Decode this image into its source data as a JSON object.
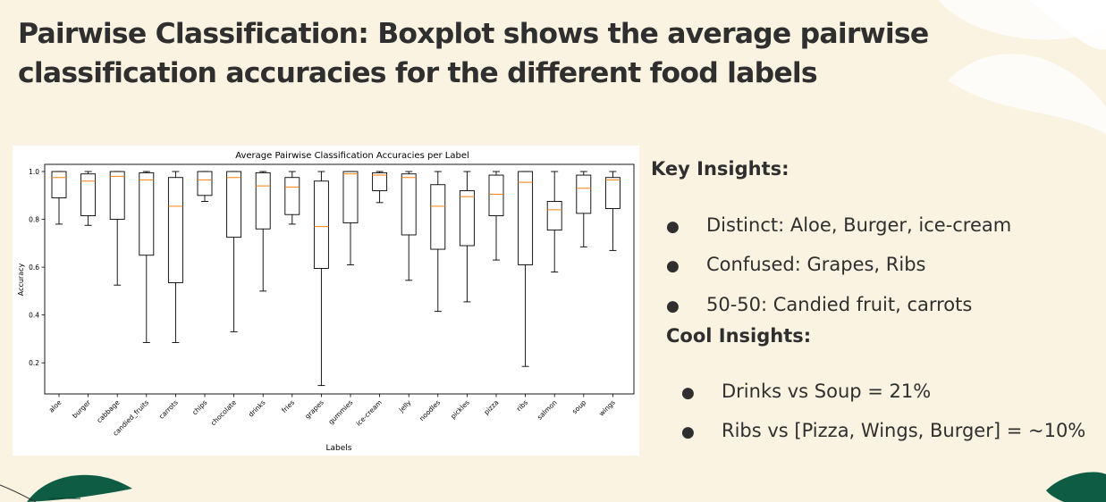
{
  "slide": {
    "title": "Pairwise Classification: Boxplot shows the average pairwise classification accuracies for the different food labels"
  },
  "insights": {
    "key_heading": "Key Insights:",
    "key_items": [
      "Distinct: Aloe, Burger, ice-cream",
      "Confused: Grapes, Ribs",
      "50-50: Candied fruit, carrots"
    ],
    "cool_heading": "Cool Insights:",
    "cool_items": [
      "Drinks vs Soup = 21%",
      "Ribs vs [Pizza, Wings, Burger] = ~10%"
    ]
  },
  "colors": {
    "background": "#faf3e2",
    "leaf_dark": "#0f5c44",
    "leaf_light": "#ffffff",
    "median": "#ff7f0e",
    "text": "#2f2f2f"
  },
  "chart_data": {
    "type": "boxplot",
    "title": "Average Pairwise Classification Accuracies per Label",
    "xlabel": "Labels",
    "ylabel": "Accuracy",
    "ylim": [
      0.07,
      1.03
    ],
    "yticks": [
      "0.2",
      "0.4",
      "0.6",
      "0.8",
      "1.0"
    ],
    "ytick_values": [
      0.2,
      0.4,
      0.6,
      0.8,
      1.0
    ],
    "grid": false,
    "categories": [
      "aloe",
      "burger",
      "cabbage",
      "candied_fruits",
      "carrots",
      "chips",
      "chocolate",
      "drinks",
      "fries",
      "grapes",
      "gummies",
      "ice-cream",
      "jelly",
      "noodles",
      "pickles",
      "pizza",
      "ribs",
      "salmon",
      "soup",
      "wings"
    ],
    "boxes": [
      {
        "label": "aloe",
        "whisker_low": 0.78,
        "q1": 0.89,
        "median": 0.975,
        "q3": 1.0,
        "whisker_high": 1.0
      },
      {
        "label": "burger",
        "whisker_low": 0.775,
        "q1": 0.815,
        "median": 0.96,
        "q3": 0.99,
        "whisker_high": 1.0
      },
      {
        "label": "cabbage",
        "whisker_low": 0.525,
        "q1": 0.8,
        "median": 0.98,
        "q3": 1.0,
        "whisker_high": 1.0
      },
      {
        "label": "candied_fruits",
        "whisker_low": 0.285,
        "q1": 0.65,
        "median": 0.965,
        "q3": 0.995,
        "whisker_high": 1.0
      },
      {
        "label": "carrots",
        "whisker_low": 0.285,
        "q1": 0.535,
        "median": 0.855,
        "q3": 0.975,
        "whisker_high": 1.0
      },
      {
        "label": "chips",
        "whisker_low": 0.875,
        "q1": 0.9,
        "median": 0.965,
        "q3": 1.0,
        "whisker_high": 1.0
      },
      {
        "label": "chocolate",
        "whisker_low": 0.33,
        "q1": 0.725,
        "median": 0.975,
        "q3": 1.0,
        "whisker_high": 1.0
      },
      {
        "label": "drinks",
        "whisker_low": 0.5,
        "q1": 0.76,
        "median": 0.94,
        "q3": 0.995,
        "whisker_high": 1.0
      },
      {
        "label": "fries",
        "whisker_low": 0.78,
        "q1": 0.82,
        "median": 0.935,
        "q3": 0.975,
        "whisker_high": 1.0
      },
      {
        "label": "grapes",
        "whisker_low": 0.105,
        "q1": 0.595,
        "median": 0.77,
        "q3": 0.96,
        "whisker_high": 1.0
      },
      {
        "label": "gummies",
        "whisker_low": 0.61,
        "q1": 0.785,
        "median": 0.99,
        "q3": 1.0,
        "whisker_high": 1.0
      },
      {
        "label": "ice-cream",
        "whisker_low": 0.87,
        "q1": 0.92,
        "median": 0.985,
        "q3": 0.995,
        "whisker_high": 1.0
      },
      {
        "label": "jelly",
        "whisker_low": 0.545,
        "q1": 0.735,
        "median": 0.975,
        "q3": 0.99,
        "whisker_high": 1.0
      },
      {
        "label": "noodles",
        "whisker_low": 0.415,
        "q1": 0.675,
        "median": 0.855,
        "q3": 0.945,
        "whisker_high": 1.0
      },
      {
        "label": "pickles",
        "whisker_low": 0.455,
        "q1": 0.69,
        "median": 0.895,
        "q3": 0.92,
        "whisker_high": 1.0
      },
      {
        "label": "pizza",
        "whisker_low": 0.63,
        "q1": 0.815,
        "median": 0.905,
        "q3": 0.985,
        "whisker_high": 1.0
      },
      {
        "label": "ribs",
        "whisker_low": 0.185,
        "q1": 0.61,
        "median": 0.955,
        "q3": 1.0,
        "whisker_high": 1.0
      },
      {
        "label": "salmon",
        "whisker_low": 0.58,
        "q1": 0.755,
        "median": 0.84,
        "q3": 0.875,
        "whisker_high": 1.0
      },
      {
        "label": "soup",
        "whisker_low": 0.685,
        "q1": 0.825,
        "median": 0.93,
        "q3": 0.985,
        "whisker_high": 1.0
      },
      {
        "label": "wings",
        "whisker_low": 0.67,
        "q1": 0.845,
        "median": 0.965,
        "q3": 0.975,
        "whisker_high": 1.0
      }
    ]
  }
}
